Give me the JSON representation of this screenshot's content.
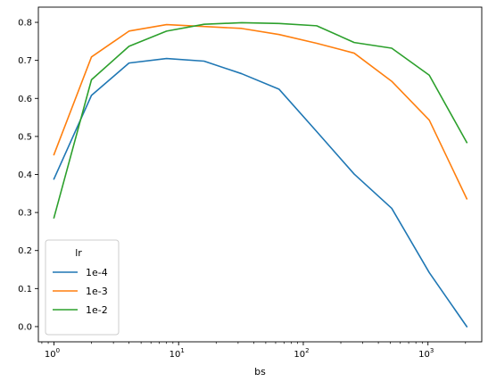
{
  "chart_data": {
    "type": "line",
    "xlabel": "bs",
    "ylabel": "",
    "xscale": "log",
    "xlim": [
      0.75,
      2700
    ],
    "ylim": [
      -0.04,
      0.84
    ],
    "x": [
      1,
      2,
      4,
      8,
      16,
      32,
      64,
      128,
      256,
      512,
      1024,
      2048
    ],
    "x_ticks": [
      {
        "value": 1,
        "base": "10",
        "exp": "0"
      },
      {
        "value": 10,
        "base": "10",
        "exp": "1"
      },
      {
        "value": 100,
        "base": "10",
        "exp": "2"
      },
      {
        "value": 1000,
        "base": "10",
        "exp": "3"
      }
    ],
    "y_ticks": [
      "0.0",
      "0.1",
      "0.2",
      "0.3",
      "0.4",
      "0.5",
      "0.6",
      "0.7",
      "0.8"
    ],
    "grid": false,
    "legend": {
      "title": "lr",
      "placement": "lower-left"
    },
    "series": [
      {
        "name": "1e-4",
        "color": "#1f77b4",
        "values": [
          0.388,
          0.608,
          0.693,
          0.705,
          0.698,
          0.665,
          0.624,
          0.513,
          0.401,
          0.311,
          0.142,
          0.0
        ]
      },
      {
        "name": "1e-3",
        "color": "#ff7f0e",
        "values": [
          0.452,
          0.709,
          0.777,
          0.794,
          0.789,
          0.784,
          0.768,
          0.745,
          0.719,
          0.645,
          0.543,
          0.336
        ]
      },
      {
        "name": "1e-2",
        "color": "#2ca02c",
        "values": [
          0.286,
          0.649,
          0.737,
          0.777,
          0.795,
          0.799,
          0.797,
          0.791,
          0.747,
          0.732,
          0.661,
          0.484
        ]
      }
    ]
  }
}
